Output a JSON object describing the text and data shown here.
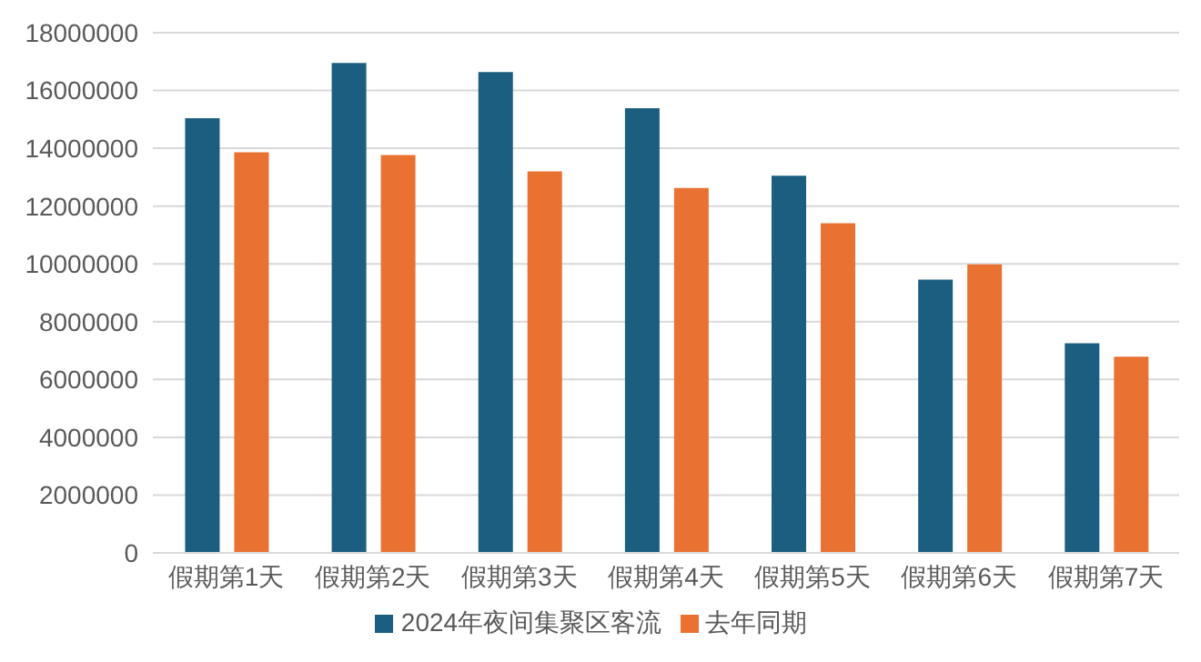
{
  "chart_data": {
    "type": "bar",
    "categories": [
      "假期第1天",
      "假期第2天",
      "假期第3天",
      "假期第4天",
      "假期第5天",
      "假期第6天",
      "假期第7天"
    ],
    "series": [
      {
        "name": "2024年夜间集聚区客流",
        "color": "#1b5e80",
        "values": [
          15040000,
          16950000,
          16640000,
          15390000,
          13050000,
          9460000,
          7250000
        ]
      },
      {
        "name": "去年同期",
        "color": "#e97132",
        "values": [
          13860000,
          13770000,
          13200000,
          12630000,
          11410000,
          9980000,
          6790000
        ]
      }
    ],
    "ylim": [
      0,
      18000000
    ],
    "yticks": [
      0,
      2000000,
      4000000,
      6000000,
      8000000,
      10000000,
      12000000,
      14000000,
      16000000,
      18000000
    ],
    "grid": "y",
    "legend": "bottom"
  }
}
